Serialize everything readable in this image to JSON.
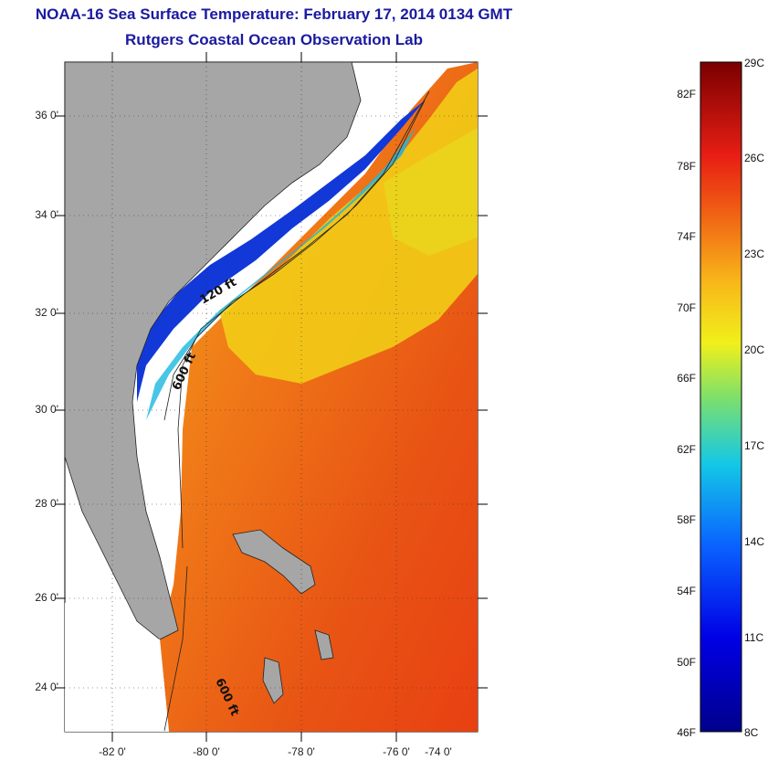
{
  "title": "NOAA-16 Sea Surface Temperature:  February 17, 2014 0134 GMT",
  "subtitle": "Rutgers Coastal Ocean Observation Lab",
  "lat_labels": [
    "36 0'",
    "34 0'",
    "32 0'",
    "30 0'",
    "28 0'",
    "26 0'",
    "24 0'"
  ],
  "lon_labels": [
    "-82 0'",
    "-80 0'",
    "-78 0'",
    "-76 0'",
    "-74 0'"
  ],
  "contour_labels": [
    "120 ft",
    "600 ft",
    "600 ft"
  ],
  "colorbar": {
    "f_labels": [
      "82F",
      "78F",
      "74F",
      "70F",
      "66F",
      "62F",
      "58F",
      "54F",
      "50F",
      "46F"
    ],
    "c_labels": [
      "29C",
      "26C",
      "23C",
      "20C",
      "17C",
      "14C",
      "11C",
      "8C"
    ]
  },
  "colors": {
    "title": "#1a1aa0",
    "land": "#a6a6a6",
    "warm": "#e84010",
    "mid": "#f5c20a",
    "cold": "#0a2ad2"
  }
}
